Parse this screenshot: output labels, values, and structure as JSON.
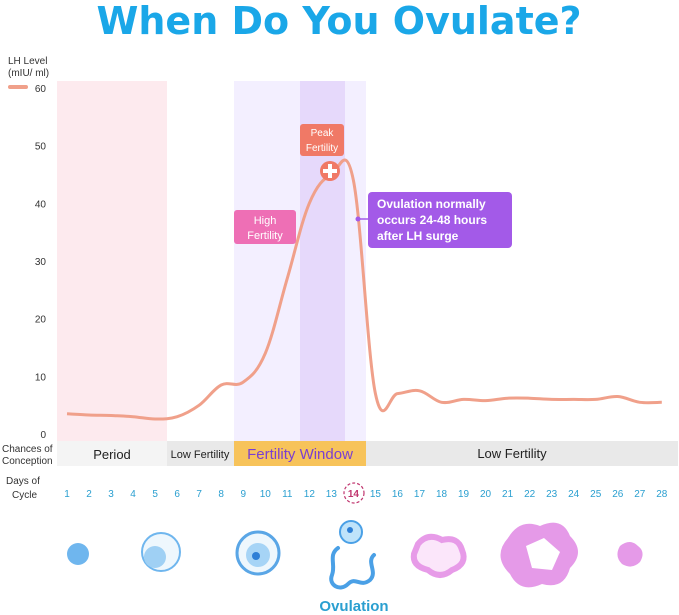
{
  "title": "When Do You Ovulate?",
  "y_axis": {
    "label_line1": "LH Level",
    "label_line2": "(mIU/ ml)",
    "ticks": [
      "60",
      "50",
      "40",
      "30",
      "20",
      "10",
      "0"
    ]
  },
  "x_axis": {
    "label_line1": "Days of",
    "label_line2": "Cycle",
    "highlight_day": "14",
    "days": [
      "1",
      "2",
      "3",
      "4",
      "5",
      "6",
      "7",
      "8",
      "9",
      "10",
      "11",
      "12",
      "13",
      "14",
      "15",
      "16",
      "17",
      "18",
      "19",
      "20",
      "21",
      "22",
      "23",
      "24",
      "25",
      "26",
      "27",
      "28"
    ]
  },
  "conception": {
    "label_line1": "Chances of",
    "label_line2": "Conception",
    "period": "Period",
    "low_fertility_left": "Low Fertility",
    "fertility_window": "Fertility Window",
    "low_fertility_right": "Low Fertility"
  },
  "annotations": {
    "high_fertility_line1": "High",
    "high_fertility_line2": "Fertility",
    "peak_fertility_line1": "Peak",
    "peak_fertility_line2": "Fertility",
    "ovulation_note_line1": "Ovulation normally",
    "ovulation_note_line2": "occurs 24-48 hours",
    "ovulation_note_line3": "after LH surge"
  },
  "ovulation_label": "Ovulation",
  "colors": {
    "title": "#1aa7e8",
    "curve": "#f0a08a",
    "period_band": "#fdeaee",
    "fertile_band": "#f3efff",
    "peak_band": "#e6d9fb",
    "window_label_bg": "#f7c35a",
    "window_label_text": "#7a3fd1",
    "gray_bar": "#e9e9e9",
    "day_numbers": "#2a9fd0",
    "high_badge": "#ee6fb5",
    "peak_badge": "#f07966",
    "note_badge": "#a35ae8"
  },
  "chart_data": {
    "type": "line",
    "title": "When Do You Ovulate?",
    "ylabel": "LH Level (mIU/ ml)",
    "xlabel": "Days of Cycle",
    "ylim": [
      0,
      60
    ],
    "xlim": [
      1,
      28
    ],
    "grid": false,
    "legend": "top-left",
    "x": [
      1,
      2,
      3,
      4,
      5,
      6,
      7,
      8,
      9,
      10,
      11,
      12,
      13,
      14,
      15,
      16,
      17,
      18,
      19,
      20,
      21,
      22,
      23,
      24,
      25,
      26,
      27,
      28
    ],
    "series": [
      {
        "values": [
          3.5,
          3.3,
          3.2,
          3.0,
          2.6,
          3.0,
          5.0,
          8.5,
          9.0,
          14.0,
          27.0,
          40.0,
          45.0,
          44.0,
          7.0,
          7.0,
          7.5,
          5.5,
          6.0,
          5.8,
          6.2,
          6.2,
          6.0,
          6.0,
          6.0,
          6.5,
          5.5,
          5.5
        ]
      }
    ]
  }
}
